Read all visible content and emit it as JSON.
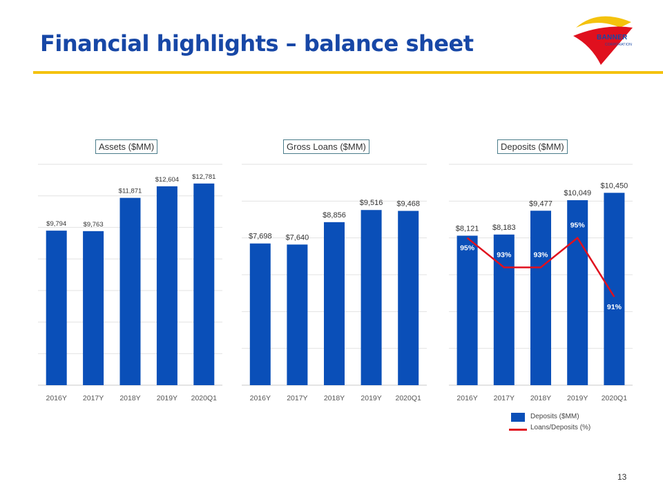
{
  "slide": {
    "title": "Financial highlights – balance sheet",
    "page_number": "13",
    "logo_text": "BANNER",
    "logo_subtext": "CORPORATION",
    "accent_color": "#f4c20d",
    "title_color": "#1747a6",
    "bar_color": "#0a4fb8",
    "line_color": "#e0101e"
  },
  "chart_data": [
    {
      "type": "bar",
      "title": "Assets ($MM)",
      "categories": [
        "2016Y",
        "2017Y",
        "2018Y",
        "2019Y",
        "2020Q1"
      ],
      "values": [
        9794,
        9763,
        11871,
        12604,
        12781
      ],
      "value_labels": [
        "$9,794",
        "$9,763",
        "$11,871",
        "$12,604",
        "$12,781"
      ],
      "ylim": [
        0,
        14000
      ],
      "grid": true
    },
    {
      "type": "bar",
      "title": "Gross Loans ($MM)",
      "categories": [
        "2016Y",
        "2017Y",
        "2018Y",
        "2019Y",
        "2020Q1"
      ],
      "values": [
        7698,
        7640,
        8856,
        9516,
        9468
      ],
      "value_labels": [
        "$7,698",
        "$7,640",
        "$8,856",
        "$9,516",
        "$9,468"
      ],
      "ylim": [
        0,
        12000
      ],
      "grid": true
    },
    {
      "type": "bar",
      "title": "Deposits ($MM)",
      "categories": [
        "2016Y",
        "2017Y",
        "2018Y",
        "2019Y",
        "2020Q1"
      ],
      "series": [
        {
          "name": "Deposits ($MM)",
          "type": "bar",
          "values": [
            8121,
            8183,
            9477,
            10049,
            10450
          ],
          "value_labels": [
            "$8,121",
            "$8,183",
            "$9,477",
            "$10,049",
            "$10,450"
          ]
        },
        {
          "name": "Loans/Deposits (%)",
          "type": "line",
          "values": [
            95,
            93,
            93,
            95,
            91
          ],
          "value_labels": [
            "95%",
            "93%",
            "93%",
            "95%",
            "91%"
          ]
        }
      ],
      "ylim": [
        0,
        12000
      ],
      "y2lim": [
        85,
        100
      ],
      "legend": [
        "Deposits ($MM)",
        "Loans/Deposits (%)"
      ],
      "grid": true
    }
  ]
}
